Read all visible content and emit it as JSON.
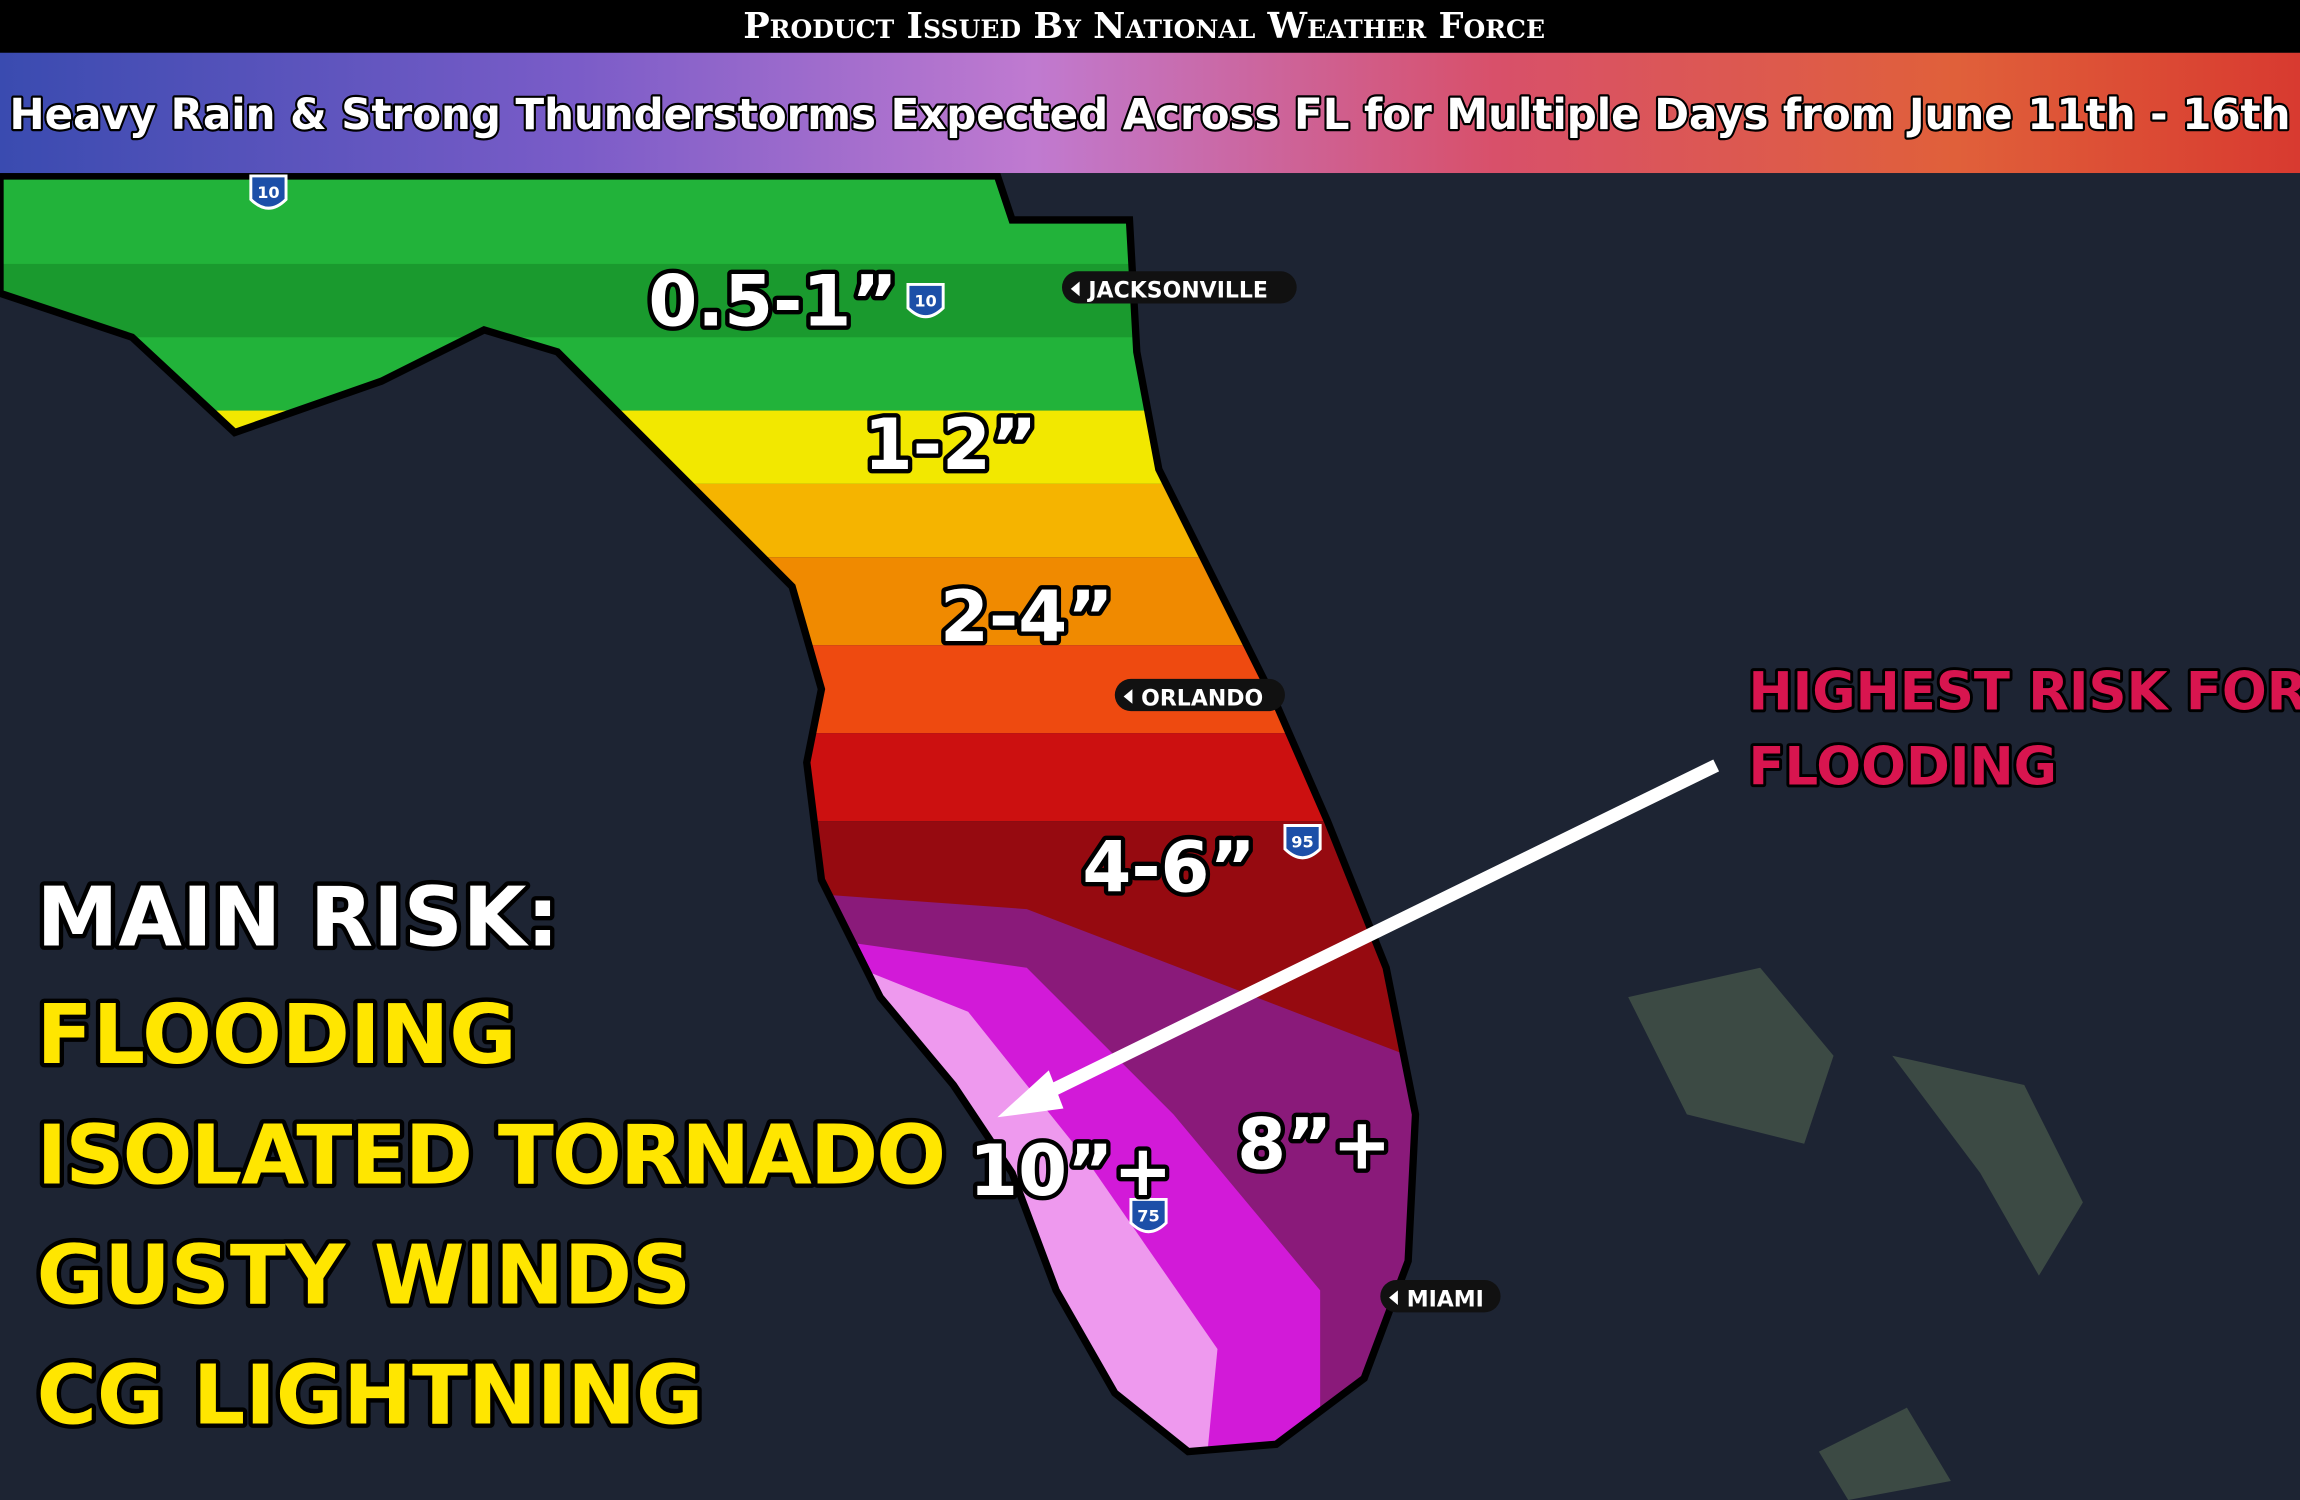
{
  "header": {
    "issuer": "Product Issued By National Weather Force",
    "title": "Heavy Rain & Strong Thunderstorms Expected Across FL for Multiple Days from June 11th - 16th"
  },
  "rainfall_labels": [
    "0.5-1”",
    "1-2”",
    "2-4”",
    "4-6”",
    "8”+",
    "10”+"
  ],
  "cities": [
    "JACKSONVILLE",
    "ORLANDO",
    "MIAMI"
  ],
  "interstates": [
    "10",
    "10",
    "95",
    "75"
  ],
  "main_risk": {
    "heading": "MAIN RISK:",
    "items": [
      "FLOODING",
      "ISOLATED TORNADO",
      "GUSTY WINDS",
      "CG LIGHTNING"
    ]
  },
  "callout": {
    "lines": [
      "HIGHEST RISK FOR",
      "FLOODING"
    ]
  }
}
